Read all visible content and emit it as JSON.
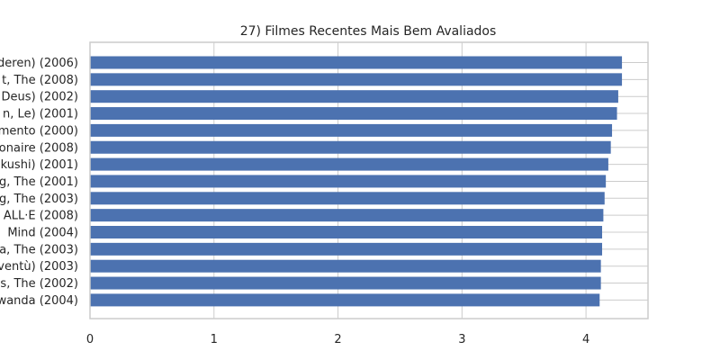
{
  "chart_data": {
    "type": "bar",
    "orientation": "horizontal",
    "title": "27) Filmes Recentes Mais Bem Avaliados",
    "xlabel": "",
    "ylabel": "",
    "xlim": [
      0,
      4.5
    ],
    "xticks": [
      0,
      1,
      2,
      3,
      4
    ],
    "grid": true,
    "bar_color": "#4c72b0",
    "categories": [
      "deren) (2006)",
      "t, The (2008)",
      "Deus) (2002)",
      "n, Le) (2001)",
      "mento (2000)",
      "onaire (2008)",
      "kushi) (2001)",
      "g, The (2001)",
      "g, The (2003)",
      "ALL·E (2008)",
      "Mind (2004)",
      "a, The (2003)",
      "ventù) (2003)",
      "s, The (2002)",
      "wanda (2004)"
    ],
    "values": [
      4.29,
      4.29,
      4.26,
      4.25,
      4.21,
      4.2,
      4.18,
      4.16,
      4.15,
      4.14,
      4.13,
      4.13,
      4.12,
      4.12,
      4.11
    ]
  }
}
